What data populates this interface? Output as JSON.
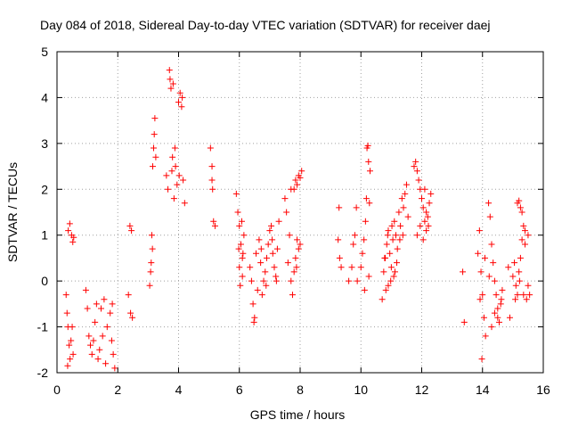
{
  "chart_data": {
    "type": "scatter",
    "title": "Day 084 of 2018, Sidereal Day-to-day VTEC variation (SDTVAR) for receiver daej",
    "xlabel": "GPS time / hours",
    "ylabel": "SDTVAR / TECUs",
    "xlim": [
      0,
      16
    ],
    "ylim": [
      -2,
      5
    ],
    "xticks": [
      "0",
      "2",
      "4",
      "6",
      "8",
      "10",
      "12",
      "14",
      "16"
    ],
    "yticks": [
      "-2",
      "-1",
      "0",
      "1",
      "2",
      "3",
      "4",
      "5"
    ],
    "grid": true,
    "marker": "+",
    "color": "#ff0000",
    "series": [
      {
        "name": "SDTVAR",
        "points": [
          [
            0.3,
            -0.3
          ],
          [
            0.33,
            -0.7
          ],
          [
            0.36,
            -1.0
          ],
          [
            0.4,
            -1.4
          ],
          [
            0.43,
            -1.7
          ],
          [
            0.46,
            -1.3
          ],
          [
            0.5,
            -1.0
          ],
          [
            0.53,
            -1.6
          ],
          [
            0.37,
            1.1
          ],
          [
            0.42,
            1.25
          ],
          [
            0.48,
            1.0
          ],
          [
            0.52,
            0.85
          ],
          [
            0.55,
            0.95
          ],
          [
            0.35,
            -1.85
          ],
          [
            0.95,
            -0.2
          ],
          [
            1.0,
            -0.6
          ],
          [
            1.05,
            -1.2
          ],
          [
            1.1,
            -1.4
          ],
          [
            1.15,
            -1.6
          ],
          [
            1.2,
            -1.3
          ],
          [
            1.25,
            -0.9
          ],
          [
            1.3,
            -0.5
          ],
          [
            1.35,
            -1.7
          ],
          [
            1.4,
            -1.5
          ],
          [
            1.45,
            -0.6
          ],
          [
            1.5,
            -1.2
          ],
          [
            1.55,
            -0.4
          ],
          [
            1.6,
            -1.8
          ],
          [
            1.65,
            -1.0
          ],
          [
            1.75,
            -0.7
          ],
          [
            1.8,
            -1.3
          ],
          [
            1.85,
            -1.6
          ],
          [
            1.9,
            -1.9
          ],
          [
            1.82,
            -0.5
          ],
          [
            2.35,
            -0.3
          ],
          [
            2.4,
            1.2
          ],
          [
            2.45,
            1.1
          ],
          [
            2.42,
            -0.7
          ],
          [
            2.48,
            -0.8
          ],
          [
            3.05,
            -0.1
          ],
          [
            3.1,
            0.4
          ],
          [
            3.12,
            1.0
          ],
          [
            3.15,
            2.5
          ],
          [
            3.18,
            2.9
          ],
          [
            3.2,
            3.2
          ],
          [
            3.22,
            3.55
          ],
          [
            3.25,
            2.7
          ],
          [
            3.08,
            0.2
          ],
          [
            3.14,
            0.7
          ],
          [
            3.6,
            2.3
          ],
          [
            3.65,
            2.0
          ],
          [
            3.7,
            4.6
          ],
          [
            3.75,
            4.2
          ],
          [
            3.8,
            2.7
          ],
          [
            3.85,
            1.8
          ],
          [
            3.9,
            2.5
          ],
          [
            3.95,
            2.1
          ],
          [
            4.0,
            3.9
          ],
          [
            4.05,
            4.1
          ],
          [
            4.1,
            3.8
          ],
          [
            4.15,
            2.2
          ],
          [
            4.2,
            1.7
          ],
          [
            3.78,
            2.4
          ],
          [
            3.88,
            2.9
          ],
          [
            4.02,
            2.3
          ],
          [
            4.12,
            4.0
          ],
          [
            3.72,
            4.4
          ],
          [
            3.82,
            4.3
          ],
          [
            5.05,
            2.9
          ],
          [
            5.1,
            2.5
          ],
          [
            5.12,
            2.0
          ],
          [
            5.15,
            1.3
          ],
          [
            5.2,
            1.2
          ],
          [
            5.1,
            2.2
          ],
          [
            5.9,
            1.9
          ],
          [
            5.95,
            1.5
          ],
          [
            6.0,
            1.2
          ],
          [
            6.05,
            0.8
          ],
          [
            6.1,
            0.5
          ],
          [
            6.0,
            0.3
          ],
          [
            6.1,
            0.1
          ],
          [
            6.15,
            1.0
          ],
          [
            5.98,
            0.7
          ],
          [
            6.08,
            1.3
          ],
          [
            6.03,
            -0.1
          ],
          [
            6.12,
            0.6
          ],
          [
            6.35,
            0.3
          ],
          [
            6.4,
            0.0
          ],
          [
            6.45,
            -0.5
          ],
          [
            6.5,
            -0.8
          ],
          [
            6.55,
            0.6
          ],
          [
            6.6,
            -0.2
          ],
          [
            6.65,
            0.9
          ],
          [
            6.7,
            0.4
          ],
          [
            6.75,
            -0.3
          ],
          [
            6.8,
            0.0
          ],
          [
            6.85,
            0.2
          ],
          [
            6.9,
            0.5
          ],
          [
            6.95,
            0.8
          ],
          [
            7.0,
            1.1
          ],
          [
            7.05,
            1.2
          ],
          [
            7.1,
            0.6
          ],
          [
            7.15,
            0.3
          ],
          [
            7.2,
            0.1
          ],
          [
            7.25,
            0.7
          ],
          [
            7.3,
            1.3
          ],
          [
            6.48,
            -0.9
          ],
          [
            6.72,
            0.7
          ],
          [
            6.88,
            -0.1
          ],
          [
            7.08,
            0.9
          ],
          [
            7.22,
            0.0
          ],
          [
            7.5,
            1.8
          ],
          [
            7.55,
            1.5
          ],
          [
            7.6,
            0.4
          ],
          [
            7.65,
            1.0
          ],
          [
            7.7,
            0.0
          ],
          [
            7.75,
            -0.3
          ],
          [
            7.8,
            0.2
          ],
          [
            7.85,
            0.5
          ],
          [
            7.9,
            0.9
          ],
          [
            7.95,
            0.7
          ],
          [
            8.0,
            0.8
          ],
          [
            7.8,
            2.0
          ],
          [
            7.85,
            2.2
          ],
          [
            7.9,
            2.1
          ],
          [
            7.95,
            2.3
          ],
          [
            8.0,
            2.25
          ],
          [
            8.05,
            2.4
          ],
          [
            7.7,
            2.0
          ],
          [
            7.88,
            0.3
          ],
          [
            9.25,
            0.9
          ],
          [
            9.3,
            0.5
          ],
          [
            9.35,
            0.3
          ],
          [
            9.28,
            1.6
          ],
          [
            9.6,
            0.0
          ],
          [
            9.7,
            0.3
          ],
          [
            9.75,
            0.8
          ],
          [
            9.8,
            1.0
          ],
          [
            9.85,
            1.6
          ],
          [
            9.88,
            0.0
          ],
          [
            10.0,
            0.3
          ],
          [
            10.05,
            0.6
          ],
          [
            10.1,
            0.9
          ],
          [
            10.15,
            1.3
          ],
          [
            10.18,
            1.8
          ],
          [
            10.2,
            2.9
          ],
          [
            10.23,
            2.95
          ],
          [
            10.25,
            2.6
          ],
          [
            10.3,
            2.4
          ],
          [
            10.12,
            -0.2
          ],
          [
            10.26,
            0.1
          ],
          [
            10.28,
            1.7
          ],
          [
            10.7,
            -0.4
          ],
          [
            10.75,
            0.2
          ],
          [
            10.8,
            0.5
          ],
          [
            10.85,
            0.8
          ],
          [
            10.9,
            1.1
          ],
          [
            10.95,
            0.6
          ],
          [
            11.0,
            0.3
          ],
          [
            11.05,
            0.9
          ],
          [
            11.1,
            1.3
          ],
          [
            11.15,
            1.0
          ],
          [
            11.2,
            0.7
          ],
          [
            11.25,
            1.5
          ],
          [
            11.3,
            1.2
          ],
          [
            11.35,
            1.8
          ],
          [
            11.4,
            1.6
          ],
          [
            11.45,
            1.9
          ],
          [
            11.5,
            2.1
          ],
          [
            11.55,
            1.4
          ],
          [
            10.82,
            -0.2
          ],
          [
            10.9,
            -0.1
          ],
          [
            10.98,
            0.0
          ],
          [
            11.08,
            0.1
          ],
          [
            11.18,
            0.4
          ],
          [
            11.28,
            0.9
          ],
          [
            11.38,
            1.0
          ],
          [
            10.88,
            1.0
          ],
          [
            10.78,
            0.5
          ],
          [
            11.02,
            1.2
          ],
          [
            11.12,
            0.2
          ],
          [
            11.75,
            2.5
          ],
          [
            11.8,
            2.6
          ],
          [
            11.85,
            2.4
          ],
          [
            11.9,
            2.2
          ],
          [
            11.95,
            2.0
          ],
          [
            12.0,
            1.8
          ],
          [
            12.05,
            1.6
          ],
          [
            12.1,
            1.3
          ],
          [
            12.15,
            1.1
          ],
          [
            12.2,
            1.4
          ],
          [
            12.25,
            1.7
          ],
          [
            12.3,
            1.9
          ],
          [
            11.85,
            1.0
          ],
          [
            11.95,
            1.2
          ],
          [
            12.05,
            0.9
          ],
          [
            12.15,
            1.5
          ],
          [
            12.22,
            1.2
          ],
          [
            12.1,
            2.0
          ],
          [
            13.35,
            0.2
          ],
          [
            13.4,
            -0.9
          ],
          [
            13.85,
            0.6
          ],
          [
            13.9,
            1.1
          ],
          [
            13.95,
            0.2
          ],
          [
            14.0,
            -0.3
          ],
          [
            14.05,
            -0.8
          ],
          [
            14.1,
            -1.2
          ],
          [
            13.98,
            -1.7
          ],
          [
            13.92,
            -0.4
          ],
          [
            14.08,
            0.5
          ],
          [
            14.2,
            1.7
          ],
          [
            14.25,
            1.4
          ],
          [
            14.3,
            0.8
          ],
          [
            14.35,
            0.4
          ],
          [
            14.4,
            0.0
          ],
          [
            14.45,
            -0.3
          ],
          [
            14.5,
            -0.6
          ],
          [
            14.55,
            -0.9
          ],
          [
            14.6,
            -0.5
          ],
          [
            14.65,
            -0.2
          ],
          [
            14.3,
            -1.0
          ],
          [
            14.4,
            -0.7
          ],
          [
            14.5,
            -0.8
          ],
          [
            14.62,
            -0.4
          ],
          [
            14.22,
            0.1
          ],
          [
            14.85,
            0.3
          ],
          [
            14.9,
            -0.8
          ],
          [
            15.0,
            0.1
          ],
          [
            15.05,
            0.4
          ],
          [
            15.1,
            -0.1
          ],
          [
            15.15,
            -0.3
          ],
          [
            15.2,
            0.2
          ],
          [
            15.25,
            0.5
          ],
          [
            15.3,
            0.9
          ],
          [
            15.35,
            1.2
          ],
          [
            15.4,
            0.8
          ],
          [
            15.45,
            -0.4
          ],
          [
            15.5,
            -0.1
          ],
          [
            15.55,
            -0.3
          ],
          [
            15.15,
            1.7
          ],
          [
            15.2,
            1.75
          ],
          [
            15.25,
            1.6
          ],
          [
            15.3,
            1.5
          ],
          [
            15.4,
            1.1
          ],
          [
            15.5,
            1.0
          ],
          [
            15.08,
            -0.4
          ],
          [
            15.22,
            0.0
          ],
          [
            15.35,
            -0.3
          ]
        ]
      }
    ]
  }
}
